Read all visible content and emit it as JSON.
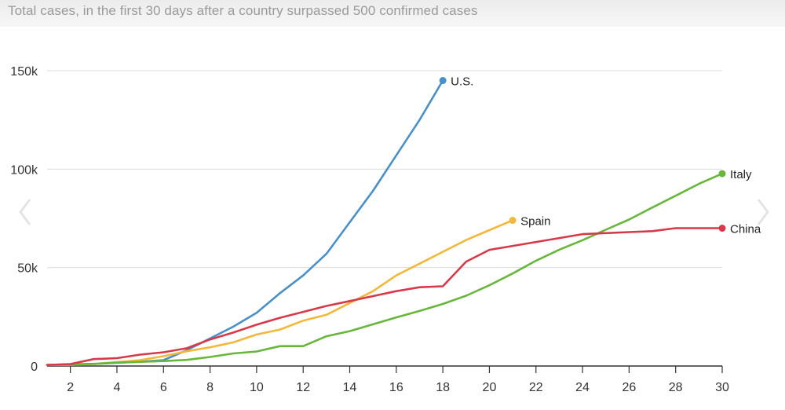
{
  "chart_data": {
    "type": "line",
    "title": "Total cases, in the first 30 days after a country surpassed 500 confirmed cases",
    "xlabel": "",
    "ylabel": "",
    "xlim": [
      1,
      30
    ],
    "ylim": [
      0,
      150000
    ],
    "x_ticks": [
      2,
      4,
      6,
      8,
      10,
      12,
      14,
      16,
      18,
      20,
      22,
      24,
      26,
      28,
      30
    ],
    "y_ticks": [
      {
        "value": 0,
        "label": "0"
      },
      {
        "value": 50000,
        "label": "50k"
      },
      {
        "value": 100000,
        "label": "100k"
      },
      {
        "value": 150000,
        "label": "150k"
      }
    ],
    "grid": "horizontal",
    "series": [
      {
        "name": "U.S.",
        "color": "#4a90c8",
        "x": [
          1,
          2,
          3,
          4,
          5,
          6,
          7,
          8,
          9,
          10,
          11,
          12,
          13,
          14,
          15,
          16,
          17,
          18
        ],
        "values": [
          500,
          700,
          1000,
          1600,
          2200,
          3000,
          8000,
          14000,
          20000,
          27000,
          37000,
          46000,
          57000,
          73000,
          89000,
          107000,
          125000,
          145000
        ]
      },
      {
        "name": "Spain",
        "color": "#f2b83b",
        "x": [
          1,
          2,
          3,
          4,
          5,
          6,
          7,
          8,
          9,
          10,
          11,
          12,
          13,
          14,
          15,
          16,
          17,
          18,
          19,
          20,
          21
        ],
        "values": [
          500,
          600,
          1000,
          2000,
          3000,
          5000,
          7500,
          9500,
          12000,
          16000,
          18500,
          23000,
          26000,
          32000,
          38000,
          46000,
          52000,
          58000,
          64000,
          69000,
          74000
        ]
      },
      {
        "name": "Italy",
        "color": "#68b63c",
        "x": [
          1,
          2,
          3,
          4,
          5,
          6,
          7,
          8,
          9,
          10,
          11,
          12,
          13,
          14,
          15,
          16,
          17,
          18,
          19,
          20,
          21,
          22,
          23,
          24,
          25,
          26,
          27,
          28,
          29,
          30
        ],
        "values": [
          500,
          900,
          1100,
          1700,
          2100,
          2500,
          3100,
          4600,
          6400,
          7400,
          10100,
          10100,
          15100,
          17700,
          21200,
          24700,
          27980,
          31500,
          35700,
          41000,
          47000,
          53500,
          59100,
          63900,
          69200,
          74400,
          80500,
          86500,
          92500,
          97700
        ]
      },
      {
        "name": "China",
        "color": "#d63a4a",
        "x": [
          1,
          2,
          3,
          4,
          5,
          6,
          7,
          8,
          9,
          10,
          11,
          12,
          13,
          14,
          15,
          16,
          17,
          18,
          19,
          20,
          21,
          22,
          23,
          24,
          25,
          26,
          27,
          28,
          29,
          30
        ],
        "values": [
          500,
          1000,
          3500,
          4000,
          5800,
          7000,
          9000,
          13500,
          17000,
          21000,
          24500,
          27500,
          30500,
          33000,
          35500,
          38000,
          40000,
          40500,
          53000,
          59000,
          61000,
          63000,
          65000,
          67000,
          67500,
          68000,
          68500,
          70000,
          70000,
          70000
        ]
      }
    ],
    "series_labels": [
      {
        "name": "U.S.",
        "at_x": 18
      },
      {
        "name": "Spain",
        "at_x": 21
      },
      {
        "name": "Italy",
        "at_x": 30
      },
      {
        "name": "China",
        "at_x": 30
      }
    ]
  },
  "navigation": {
    "prev_icon": "chevron-left-icon",
    "next_icon": "chevron-right-icon"
  }
}
